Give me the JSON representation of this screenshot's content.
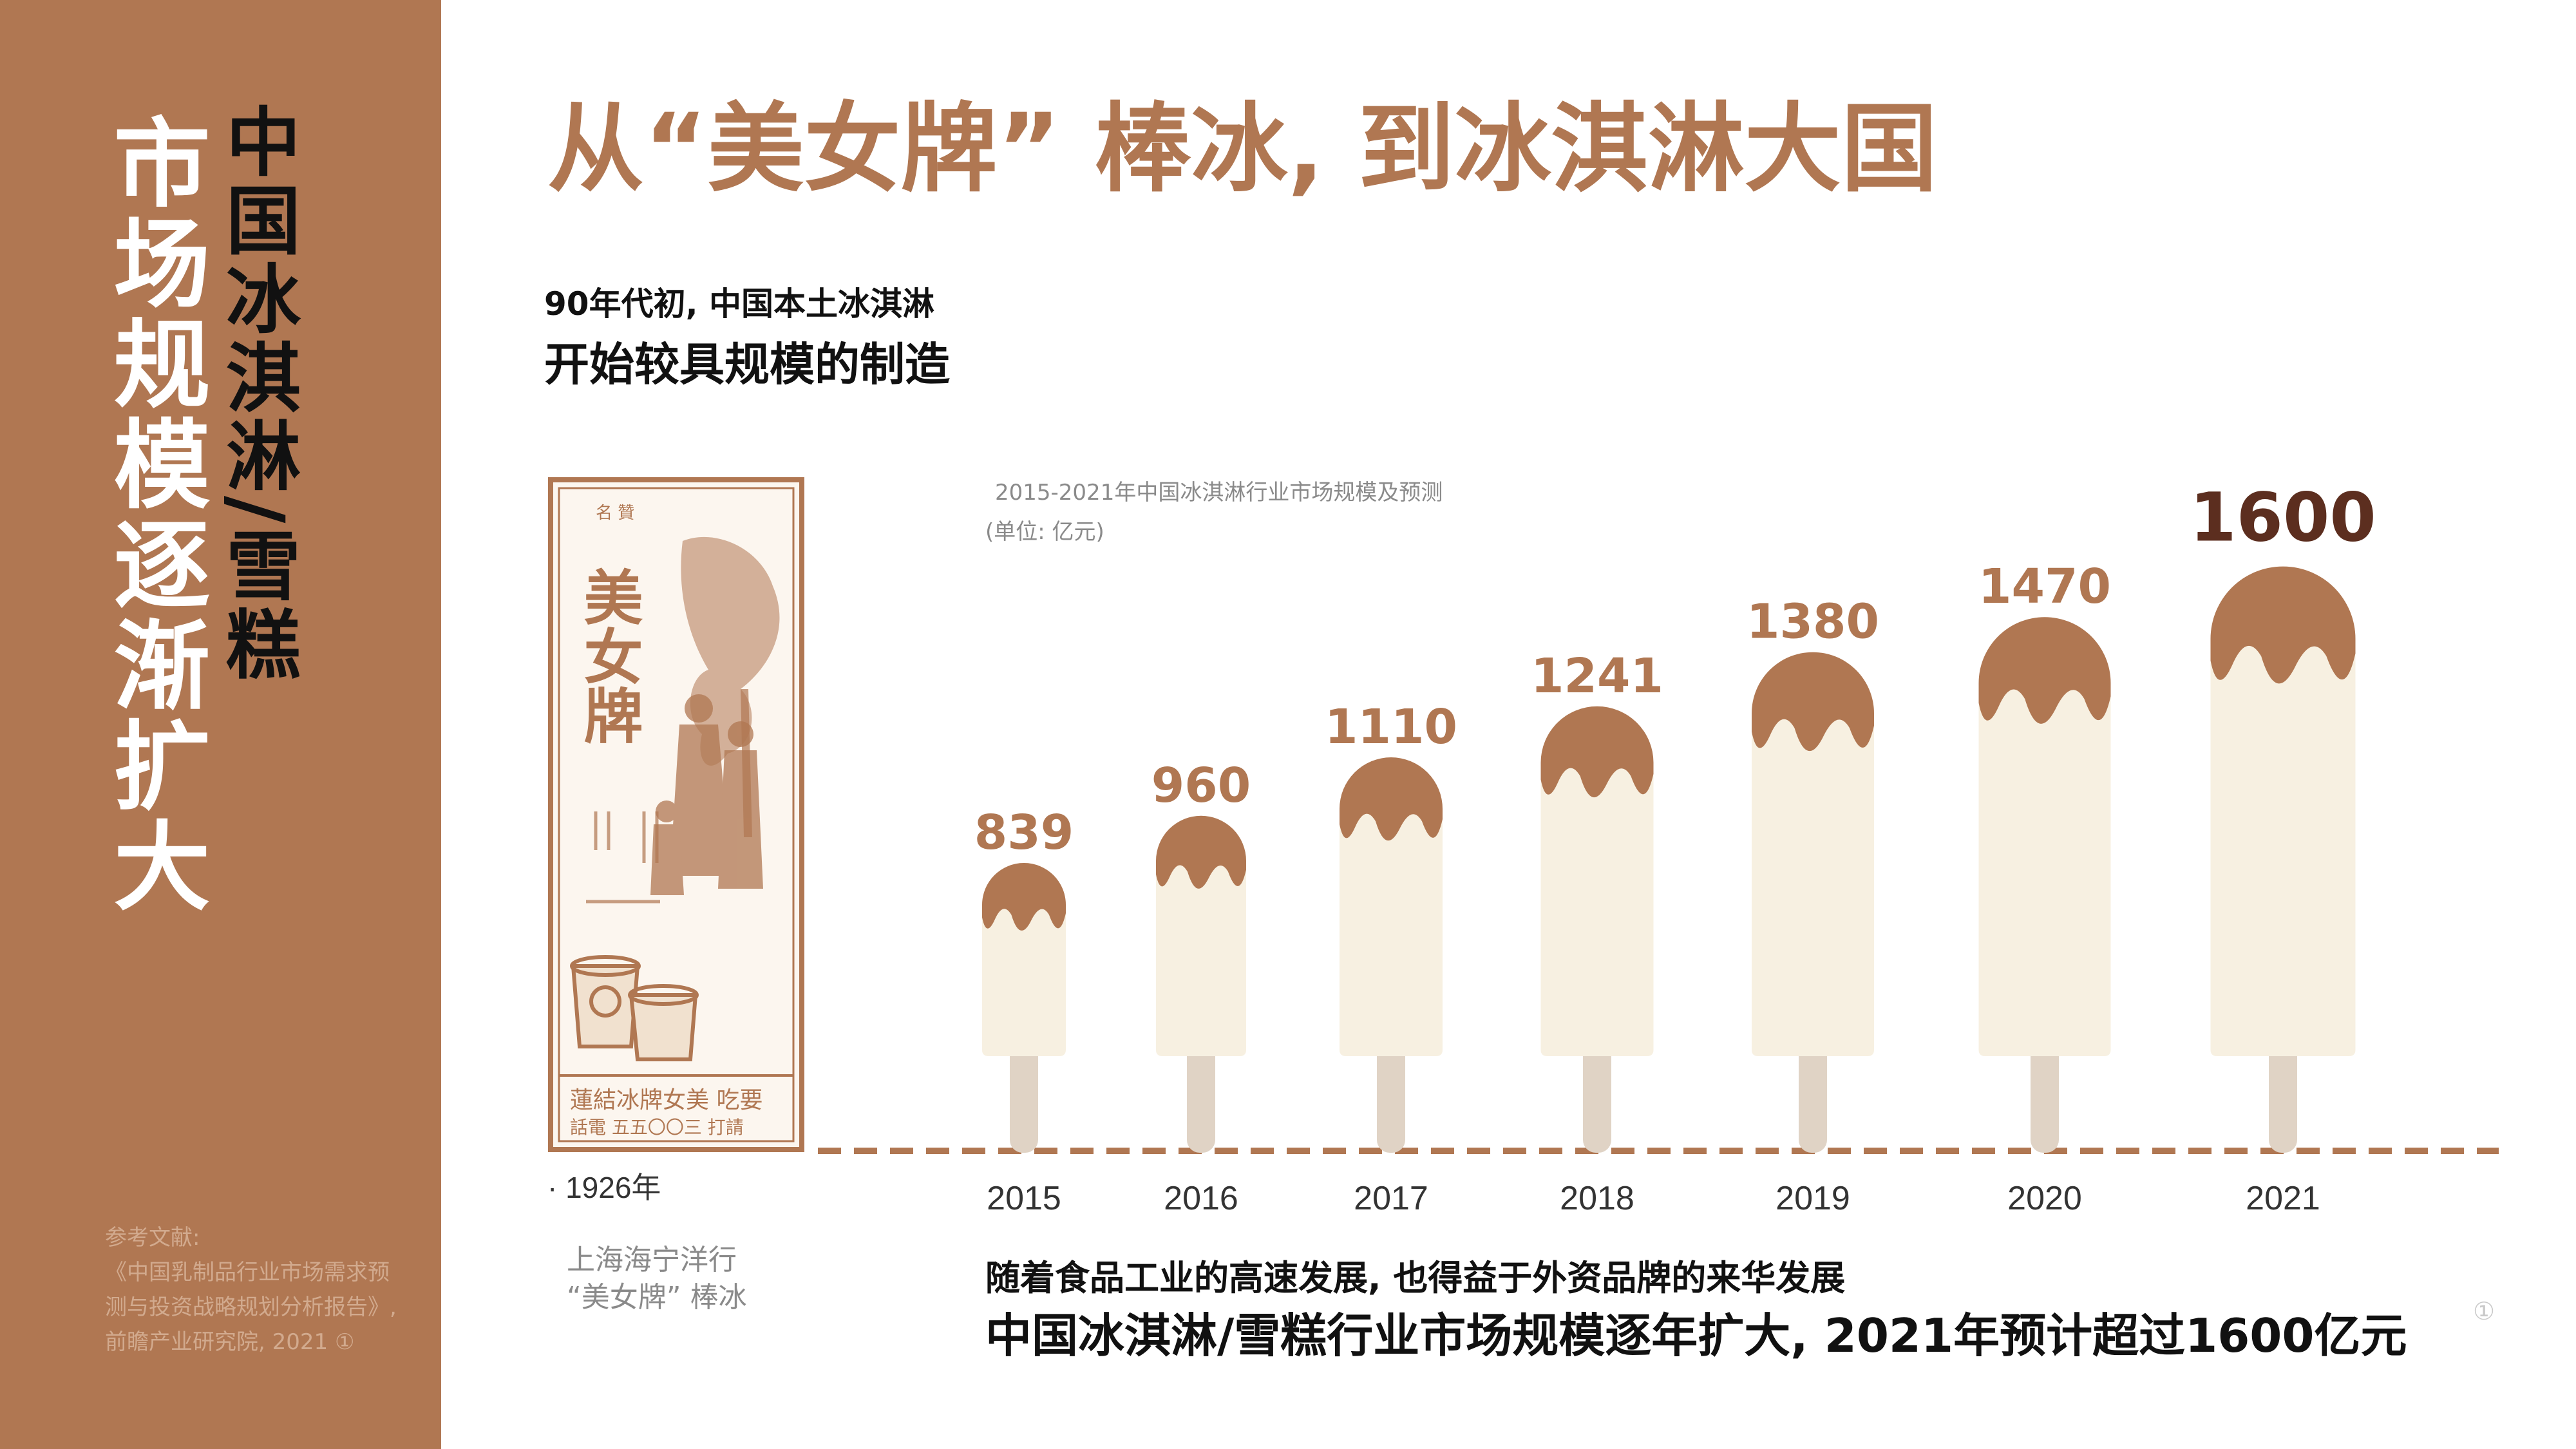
{
  "colors": {
    "accent": "#b07752",
    "cream": "#f7f0e1",
    "stick": "#e0d3c5",
    "dark_text": "#5c2e1f"
  },
  "sidebar": {
    "title_white": "市场规模逐渐扩大",
    "title_black": "中国冰淇淋/雪糕",
    "refs": [
      "参考文献:",
      "《中国乳制品行业市场需求预",
      "测与投资战略规划分析报告》,",
      "前瞻产业研究院, 2021 ①"
    ]
  },
  "main_title": "从“美女牌” 棒冰, 到冰淇淋大国",
  "intro": {
    "line1": "90年代初, 中国本土冰淇淋",
    "line2": "开始较具规模的制造"
  },
  "poster": {
    "year": "· 1926年",
    "caption_line1": "上海海宁洋行",
    "caption_line2": "“美女牌” 棒冰",
    "brand_text": "美女牌",
    "header_text": "名 贊",
    "bottom_text_1": "蓮結冰牌女美 吃要",
    "bottom_text_2": "話電 五五〇〇三 打請"
  },
  "chart_data": {
    "type": "bar",
    "title": "2015-2021年中国冰淇淋行业市场规模及预测",
    "unit": "(单位: 亿元)",
    "categories": [
      "2015",
      "2016",
      "2017",
      "2018",
      "2019",
      "2020",
      "2021"
    ],
    "values": [
      839,
      960,
      1110,
      1241,
      1380,
      1470,
      1600
    ],
    "highlight": "2021"
  },
  "footer": {
    "line1": "随着食品工业的高速发展, 也得益于外资品牌的来华发展",
    "line2": "中国冰淇淋/雪糕行业市场规模逐年扩大, 2021年预计超过1600亿元",
    "note": "①"
  }
}
